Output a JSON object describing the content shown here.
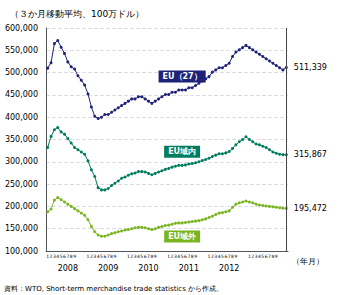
{
  "chart_data": {
    "type": "line",
    "title": "（３か月移動平均、100万ドル）",
    "x_label": "（年月）",
    "source": "資料：WTO, Short-term merchandise trade statistics から作成。",
    "categories": [
      "1",
      "2",
      "3",
      "4",
      "5",
      "6",
      "7",
      "8",
      "9",
      null,
      null,
      null,
      "1",
      "2",
      "3",
      "4",
      "5",
      "6",
      "7",
      "8",
      "9",
      null,
      null,
      null,
      "1",
      "2",
      "3",
      "4",
      "5",
      "6",
      "7",
      "8",
      "9",
      null,
      null,
      null,
      "1",
      "2",
      "3",
      "4",
      "5",
      "6",
      "7",
      "8",
      "9",
      null,
      null,
      null,
      "1",
      "2",
      "3",
      "4",
      "5",
      "6",
      "7",
      "8",
      "9",
      null,
      null,
      null,
      "1",
      "2",
      "3",
      "4",
      "5",
      "6",
      "7",
      "8",
      "9",
      null,
      null,
      null
    ],
    "annotations": [
      {
        "text": "2008",
        "x": 6
      },
      {
        "text": "2009",
        "x": 18
      },
      {
        "text": "2010",
        "x": 30
      },
      {
        "text": "2011",
        "x": 42
      },
      {
        "text": "2012",
        "x": 54
      }
    ],
    "marker": "circle",
    "grid": true,
    "ylim": [
      100000,
      600000
    ],
    "yticks": [
      {
        "value": 100000,
        "label": "100,000"
      },
      {
        "value": 150000,
        "label": "150,000"
      },
      {
        "value": 200000,
        "label": "200,000"
      },
      {
        "value": 250000,
        "label": "250,000"
      },
      {
        "value": 300000,
        "label": "300,000"
      },
      {
        "value": 350000,
        "label": "350,000"
      },
      {
        "value": 400000,
        "label": "400,000"
      },
      {
        "value": 450000,
        "label": "450,000"
      },
      {
        "value": 500000,
        "label": "500,000"
      },
      {
        "value": 550000,
        "label": "550,000"
      },
      {
        "value": 600000,
        "label": "600,000"
      }
    ],
    "series": [
      {
        "name": "EU（27）",
        "color": "#1e2278",
        "values": [
          510000,
          522000,
          565000,
          572000,
          557000,
          543000,
          524000,
          513000,
          508000,
          493000,
          483000,
          472000,
          452000,
          423000,
          402000,
          397000,
          400000,
          406000,
          406000,
          411000,
          416000,
          421000,
          426000,
          431000,
          436000,
          441000,
          441000,
          446000,
          446000,
          441000,
          436000,
          431000,
          436000,
          441000,
          446000,
          451000,
          451000,
          456000,
          456000,
          461000,
          461000,
          461000,
          466000,
          466000,
          471000,
          476000,
          481000,
          486000,
          491000,
          501000,
          506000,
          511000,
          511000,
          516000,
          521000,
          536000,
          546000,
          551000,
          556000,
          561000,
          556000,
          551000,
          546000,
          541000,
          536000,
          531000,
          526000,
          521000,
          516000,
          511000,
          506000,
          511339
        ],
        "value_labels": [
          null,
          null,
          null,
          null,
          null,
          null,
          null,
          null,
          null,
          null,
          null,
          null,
          null,
          null,
          null,
          null,
          null,
          null,
          null,
          null,
          null,
          null,
          null,
          null,
          null,
          null,
          null,
          null,
          null,
          null,
          null,
          null,
          null,
          null,
          null,
          null,
          null,
          null,
          null,
          null,
          null,
          null,
          null,
          null,
          null,
          null,
          null,
          null,
          null,
          null,
          null,
          null,
          null,
          null,
          null,
          null,
          null,
          null,
          null,
          null,
          null,
          null,
          null,
          null,
          null,
          null,
          null,
          null,
          null,
          null,
          null,
          "511,339"
        ]
      },
      {
        "name": "EU域内",
        "color": "#007d5e",
        "values": [
          332000,
          357000,
          372000,
          377000,
          367000,
          362000,
          352000,
          342000,
          332000,
          327000,
          322000,
          317000,
          302000,
          282000,
          267000,
          242000,
          237000,
          237000,
          240000,
          247000,
          252000,
          257000,
          263000,
          266000,
          270000,
          273000,
          275000,
          278000,
          278000,
          277000,
          274000,
          271000,
          274000,
          277000,
          280000,
          283000,
          285000,
          288000,
          290000,
          292000,
          292000,
          293000,
          295000,
          296000,
          298000,
          300000,
          303000,
          305000,
          308000,
          312000,
          315000,
          318000,
          318000,
          320000,
          323000,
          330000,
          338000,
          345000,
          350000,
          356000,
          350000,
          345000,
          340000,
          338000,
          335000,
          332000,
          327000,
          322000,
          319000,
          317000,
          316000,
          315867
        ],
        "value_labels": [
          null,
          null,
          null,
          null,
          null,
          null,
          null,
          null,
          null,
          null,
          null,
          null,
          null,
          null,
          null,
          null,
          null,
          null,
          null,
          null,
          null,
          null,
          null,
          null,
          null,
          null,
          null,
          null,
          null,
          null,
          null,
          null,
          null,
          null,
          null,
          null,
          null,
          null,
          null,
          null,
          null,
          null,
          null,
          null,
          null,
          null,
          null,
          null,
          null,
          null,
          null,
          null,
          null,
          null,
          null,
          null,
          null,
          null,
          null,
          null,
          null,
          null,
          null,
          null,
          null,
          null,
          null,
          null,
          null,
          null,
          null,
          "315,867"
        ]
      },
      {
        "name": "EU域外",
        "color": "#7ab520",
        "values": [
          188000,
          194000,
          214000,
          220000,
          215000,
          210000,
          205000,
          200000,
          195000,
          190000,
          185000,
          180000,
          170000,
          155000,
          143000,
          136000,
          133000,
          133000,
          136000,
          139000,
          141000,
          143000,
          145000,
          147000,
          148000,
          150000,
          152000,
          153000,
          153000,
          152000,
          150000,
          148000,
          150000,
          153000,
          155000,
          157000,
          158000,
          160000,
          162000,
          163000,
          163000,
          164000,
          165000,
          166000,
          167000,
          168000,
          170000,
          172000,
          175000,
          178000,
          182000,
          185000,
          186000,
          188000,
          190000,
          198000,
          205000,
          208000,
          210000,
          212000,
          210000,
          208000,
          205000,
          203000,
          202000,
          201000,
          200000,
          199000,
          198000,
          197000,
          196000,
          195472
        ],
        "value_labels": [
          null,
          null,
          null,
          null,
          null,
          null,
          null,
          null,
          null,
          null,
          null,
          null,
          null,
          null,
          null,
          null,
          null,
          null,
          null,
          null,
          null,
          null,
          null,
          null,
          null,
          null,
          null,
          null,
          null,
          null,
          null,
          null,
          null,
          null,
          null,
          null,
          null,
          null,
          null,
          null,
          null,
          null,
          null,
          null,
          null,
          null,
          null,
          null,
          null,
          null,
          null,
          null,
          null,
          null,
          null,
          null,
          null,
          null,
          null,
          null,
          null,
          null,
          null,
          null,
          null,
          null,
          null,
          null,
          null,
          null,
          null,
          "195,472"
        ]
      }
    ]
  }
}
